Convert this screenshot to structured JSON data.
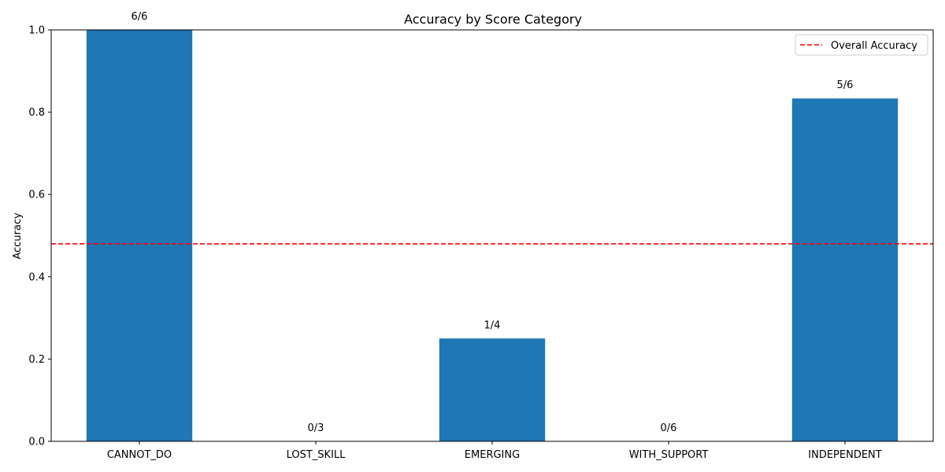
{
  "chart_data": {
    "type": "bar",
    "title": "Accuracy by Score Category",
    "xlabel": "",
    "ylabel": "Accuracy",
    "categories": [
      "CANNOT_DO",
      "LOST_SKILL",
      "EMERGING",
      "WITH_SUPPORT",
      "INDEPENDENT"
    ],
    "values": [
      1.0,
      0.0,
      0.25,
      0.0,
      0.8333
    ],
    "bar_labels": [
      "6/6",
      "0/3",
      "1/4",
      "0/6",
      "5/6"
    ],
    "ylim": [
      0,
      1.0
    ],
    "yticks": [
      0.0,
      0.2,
      0.4,
      0.6,
      0.8,
      1.0
    ],
    "ytick_labels": [
      "0.0",
      "0.2",
      "0.4",
      "0.6",
      "0.8",
      "1.0"
    ],
    "reference_line": {
      "name": "Overall Accuracy",
      "value": 0.48,
      "color": "#ff0000",
      "style": "dashed"
    },
    "bar_color": "#1f77b4",
    "legend_position": "top-right",
    "grid": false
  }
}
